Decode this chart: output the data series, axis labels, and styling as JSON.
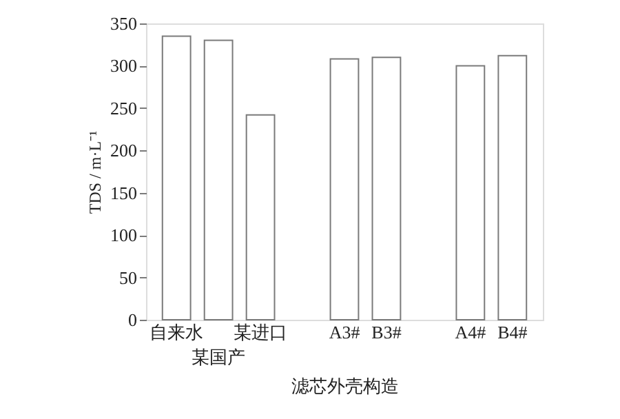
{
  "chart_data": {
    "type": "bar",
    "categories": [
      "自来水",
      "某国产",
      "某进口",
      null,
      "A3#",
      "B3#",
      null,
      "A4#",
      "B4#"
    ],
    "values": [
      335,
      330,
      242,
      null,
      308,
      310,
      null,
      300,
      312
    ],
    "color": "#ffffff",
    "xlabel": "滤芯外壳构造",
    "ylabel": "TDS / m·L⁻¹",
    "ylim": [
      0,
      350
    ],
    "yticks": [
      0,
      50,
      100,
      150,
      200,
      250,
      300,
      350
    ],
    "grid": false
  }
}
